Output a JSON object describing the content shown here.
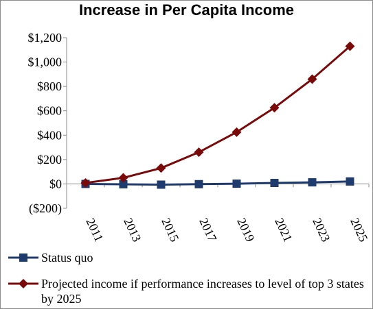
{
  "chart_data": {
    "type": "line",
    "title": "Increase in Per Capita Income",
    "xlabel": "",
    "ylabel": "",
    "x": [
      "2011",
      "2013",
      "2015",
      "2017",
      "2019",
      "2021",
      "2023",
      "2025"
    ],
    "ylim": [
      -200,
      1200
    ],
    "yticks": [
      -200,
      0,
      200,
      400,
      600,
      800,
      1000,
      1200
    ],
    "ytick_labels": [
      "($200)",
      "$0",
      "$200",
      "$400",
      "$600",
      "$800",
      "$1,000",
      "$1,200"
    ],
    "grid": false,
    "legend_position": "bottom",
    "series": [
      {
        "name": "Status quo",
        "color": "#1f3b6e",
        "marker": "square",
        "values": [
          0,
          -3,
          -6,
          -2,
          2,
          8,
          13,
          20
        ]
      },
      {
        "name": "Projected income if performance increases to level of top 3 states by 2025",
        "color": "#7a0a0a",
        "marker": "diamond",
        "values": [
          8,
          50,
          130,
          260,
          425,
          625,
          860,
          1130
        ]
      }
    ]
  }
}
